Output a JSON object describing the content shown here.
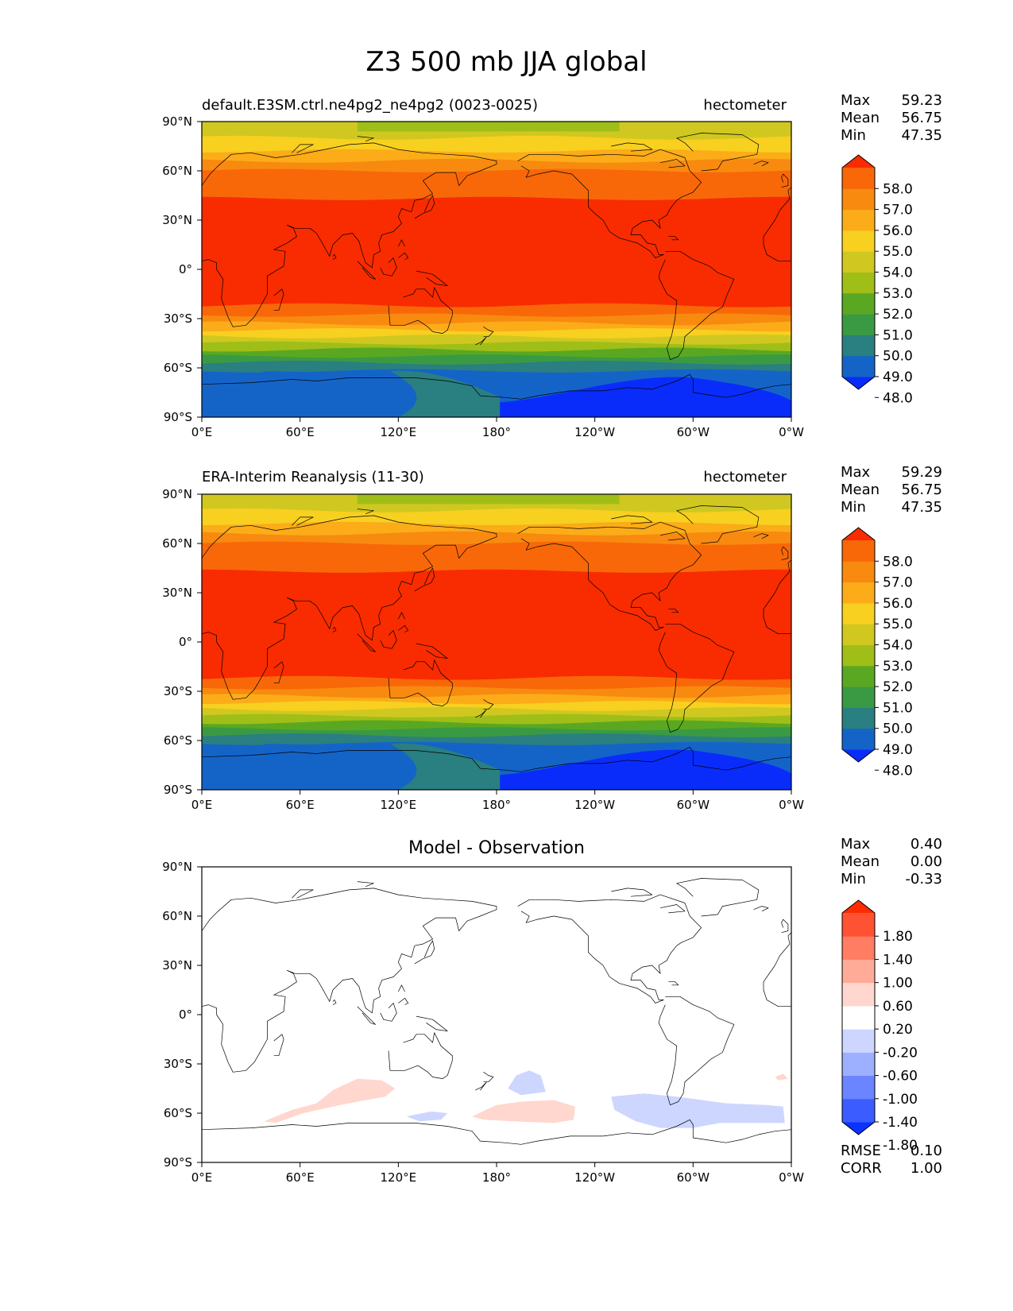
{
  "figure": {
    "title": "Z3 500 mb JJA global"
  },
  "colors": {
    "test_ref_levels": [
      "#0a2cfa",
      "#1464c8",
      "#2a7f80",
      "#3a9a44",
      "#5aa822",
      "#a0be18",
      "#d0c820",
      "#f8d020",
      "#fcac18",
      "#f88a10",
      "#f86808",
      "#f82c00"
    ],
    "diff_levels": [
      "#0a33ff",
      "#3b5dff",
      "#6b84ff",
      "#9db0ff",
      "#ccd6ff",
      "#ffffff",
      "#ffd7ce",
      "#ffab98",
      "#ff7d62",
      "#ff5232",
      "#ff2b00"
    ],
    "coastline": "#000000"
  },
  "x_ticks": [
    "0°E",
    "60°E",
    "120°E",
    "180°",
    "120°W",
    "60°W",
    "0°W"
  ],
  "y_ticks": [
    "90°N",
    "60°N",
    "30°N",
    "0°",
    "30°S",
    "60°S",
    "90°S"
  ],
  "panels": [
    {
      "id": "test",
      "title_left": "default.E3SM.ctrl.ne4pg2_ne4pg2 (0023-0025)",
      "title_right": "hectometer",
      "stats": [
        {
          "label": "Max",
          "value": "59.23"
        },
        {
          "label": "Mean",
          "value": "56.75"
        },
        {
          "label": "Min",
          "value": "47.35"
        }
      ],
      "colorbar_ticks": [
        "58.0",
        "57.0",
        "56.0",
        "55.0",
        "54.0",
        "53.0",
        "52.0",
        "51.0",
        "50.0",
        "49.0",
        "48.0"
      ]
    },
    {
      "id": "reference",
      "title_left": "ERA-Interim Reanalysis (11-30)",
      "title_right": "hectometer",
      "stats": [
        {
          "label": "Max",
          "value": "59.29"
        },
        {
          "label": "Mean",
          "value": "56.75"
        },
        {
          "label": "Min",
          "value": "47.35"
        }
      ],
      "colorbar_ticks": [
        "58.0",
        "57.0",
        "56.0",
        "55.0",
        "54.0",
        "53.0",
        "52.0",
        "51.0",
        "50.0",
        "49.0",
        "48.0"
      ]
    },
    {
      "id": "difference",
      "title_center": "Model - Observation",
      "stats": [
        {
          "label": "Max",
          "value": "0.40"
        },
        {
          "label": "Mean",
          "value": "0.00"
        },
        {
          "label": "Min",
          "value": "-0.33"
        }
      ],
      "extra_stats": [
        {
          "label": "RMSE",
          "value": "0.10"
        },
        {
          "label": "CORR",
          "value": "1.00"
        }
      ],
      "colorbar_ticks": [
        "1.80",
        "1.40",
        "1.00",
        "0.60",
        "0.20",
        "-0.20",
        "-0.60",
        "-1.00",
        "-1.40",
        "-1.80"
      ]
    }
  ]
}
